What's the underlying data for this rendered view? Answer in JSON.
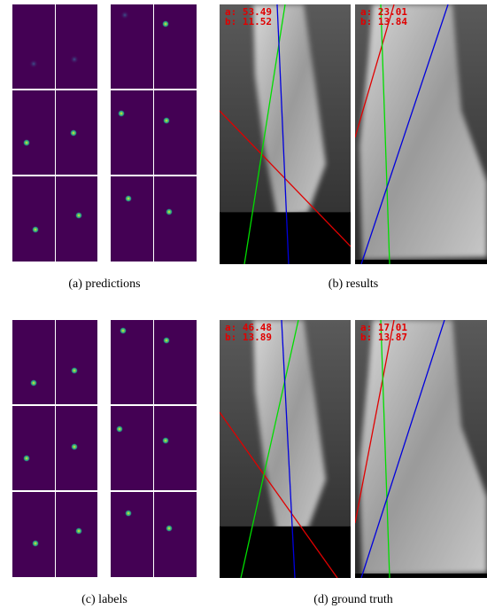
{
  "panels": [
    {
      "caption": "(a) predictions"
    },
    {
      "caption": "(b) results",
      "left_image": {
        "a": "a: 53.49",
        "b": "b: 11.52"
      },
      "right_image": {
        "a": "a: 23.01",
        "b": "b: 13.84"
      }
    },
    {
      "caption": "(c) labels"
    },
    {
      "caption": "(d) ground truth",
      "left_image": {
        "a": "a: 46.48",
        "b": "b: 13.89"
      },
      "right_image": {
        "a": "a: 17.01",
        "b": "b: 13.87"
      }
    }
  ]
}
